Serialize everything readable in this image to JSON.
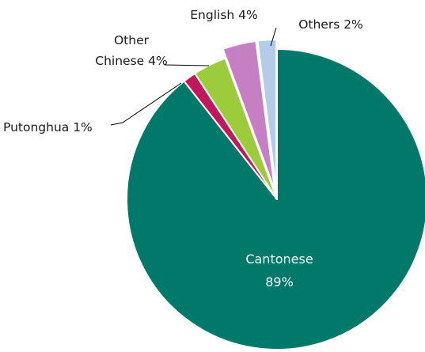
{
  "chart_data": {
    "type": "pie",
    "slices": [
      {
        "name": "Cantonese",
        "value_label": "89%",
        "value": 89.4,
        "color": "#00796b"
      },
      {
        "name": "Putonghua",
        "value_label": "1%",
        "value": 1.4,
        "color": "#c2185b"
      },
      {
        "name": "Other Chinese",
        "value_label": "4%",
        "value": 3.6,
        "color": "#9ccc3c"
      },
      {
        "name": "English",
        "value_label": "4%",
        "value": 3.6,
        "color": "#c77fc4",
        "exploded": true
      },
      {
        "name": "Others",
        "value_label": "2%",
        "value": 2.0,
        "color": "#b3cde8",
        "exploded": true
      }
    ],
    "labels": {
      "cantonese_name": "Cantonese",
      "cantonese_value": "89%",
      "putonghua": "Putonghua 1%",
      "other_chinese_line1": "Other",
      "other_chinese_line2": "Chinese 4%",
      "english": "English 4%",
      "others": "Others 2%"
    }
  }
}
